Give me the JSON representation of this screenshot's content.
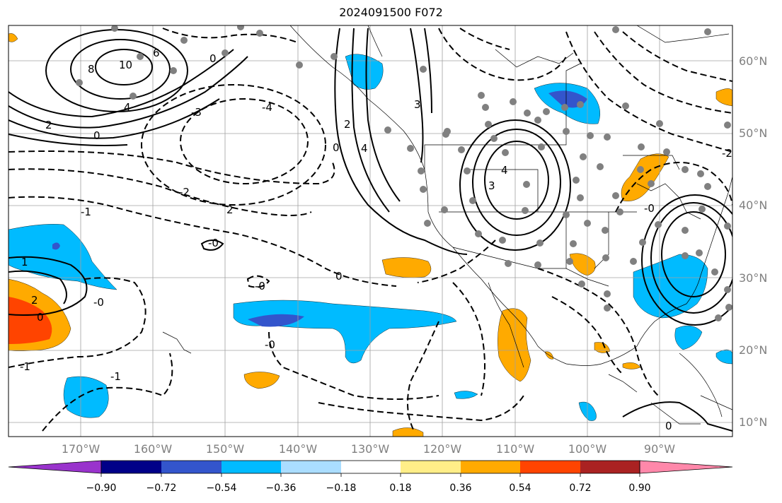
{
  "title": "2024091500 F072",
  "latitude_labels": [
    "60°N",
    "50°N",
    "40°N",
    "30°N",
    "20°N",
    "10°N"
  ],
  "longitude_labels": [
    "170°W",
    "160°W",
    "150°W",
    "140°W",
    "130°W",
    "120°W",
    "110°W",
    "100°W",
    "90°W"
  ],
  "contour_labels": [
    "8",
    "10",
    "6",
    "4",
    "2",
    "0",
    "-3",
    "-4",
    "-2",
    "2",
    "-1",
    "-0",
    "0",
    "-0",
    "1",
    "2",
    "0",
    "-1",
    "-1",
    "-0",
    "3",
    "4",
    "2",
    "3",
    "4",
    "0",
    "-0",
    "-2",
    "0",
    "-0",
    "0"
  ],
  "colorbar": {
    "tick_labels": [
      "−0.90",
      "−0.72",
      "−0.54",
      "−0.36",
      "−0.18",
      "0.18",
      "0.36",
      "0.54",
      "0.72",
      "0.90"
    ],
    "colors": [
      "#9933cc",
      "#000088",
      "#3355cc",
      "#00bbff",
      "#aaddff",
      "#ffffff",
      "#ffee88",
      "#ffaa00",
      "#ff4400",
      "#aa2222",
      "#ff88aa"
    ],
    "extend": "both"
  },
  "fill_colors": {
    "light_blue": "#00bbff",
    "dark_blue": "#3355cc",
    "orange": "#ffaa00",
    "red_orange": "#ff4400",
    "dots": "#808080"
  }
}
